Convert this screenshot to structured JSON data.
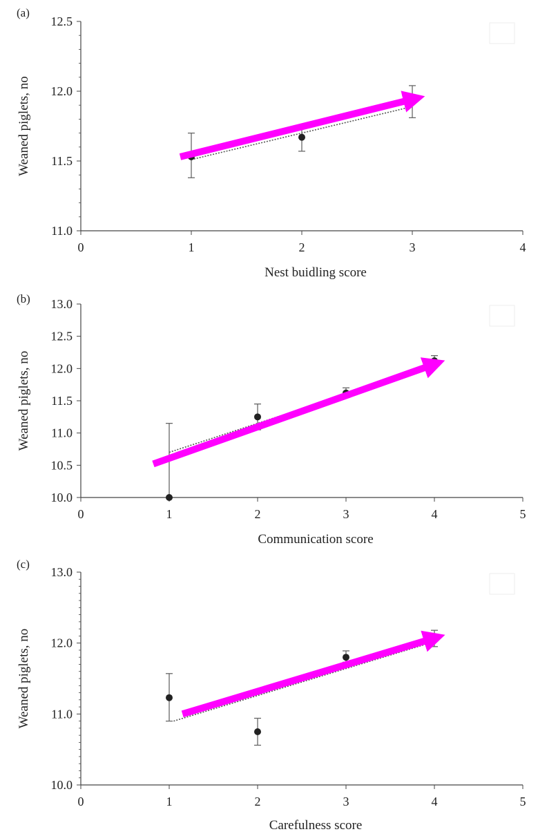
{
  "chart_data": [
    {
      "type": "scatter",
      "panel_label": "(a)",
      "xlabel": "Nest buidling score",
      "ylabel": "Weaned piglets, no",
      "xlim": [
        0,
        4
      ],
      "ylim": [
        11.0,
        12.5
      ],
      "x_ticks": [
        "0",
        "1",
        "2",
        "3",
        "4"
      ],
      "y_ticks": [
        "11.0",
        "11.5",
        "12.0",
        "12.5"
      ],
      "points": [
        {
          "x": 1,
          "y": 11.53,
          "err_low": 11.38,
          "err_high": 11.7
        },
        {
          "x": 2,
          "y": 11.67,
          "err_low": 11.57,
          "err_high": 11.76
        },
        {
          "x": 3,
          "y": 11.92,
          "err_low": 11.81,
          "err_high": 12.04
        }
      ],
      "trendline": {
        "x": [
          1,
          3
        ],
        "y": [
          11.51,
          11.89
        ]
      },
      "arrow": {
        "from": [
          0.9,
          11.53
        ],
        "to": [
          3.08,
          11.96
        ],
        "color": "#ff00ff"
      }
    },
    {
      "type": "scatter",
      "panel_label": "(b)",
      "xlabel": "Communication score",
      "ylabel": "Weaned piglets, no",
      "xlim": [
        0,
        5
      ],
      "ylim": [
        10.0,
        13.0
      ],
      "x_ticks": [
        "0",
        "1",
        "2",
        "3",
        "4",
        "5"
      ],
      "y_ticks": [
        "10.0",
        "10.5",
        "11.0",
        "11.5",
        "12.0",
        "12.5",
        "13.0"
      ],
      "points": [
        {
          "x": 1,
          "y": 10.0,
          "err_low": 10.0,
          "err_high": 11.15
        },
        {
          "x": 2,
          "y": 11.25,
          "err_low": 11.05,
          "err_high": 11.45
        },
        {
          "x": 3,
          "y": 11.62,
          "err_low": 11.55,
          "err_high": 11.7
        },
        {
          "x": 4,
          "y": 12.12,
          "err_low": 12.05,
          "err_high": 12.2
        }
      ],
      "trendline": {
        "x": [
          1,
          4
        ],
        "y": [
          10.7,
          12.05
        ]
      },
      "arrow": {
        "from": [
          0.82,
          10.52
        ],
        "to": [
          4.08,
          12.1
        ],
        "color": "#ff00ff"
      }
    },
    {
      "type": "scatter",
      "panel_label": "(c)",
      "xlabel": "Carefulness score",
      "ylabel": "Weaned piglets, no",
      "xlim": [
        0,
        5
      ],
      "ylim": [
        10.0,
        13.0
      ],
      "x_ticks": [
        "0",
        "1",
        "2",
        "3",
        "4",
        "5"
      ],
      "y_ticks": [
        "10.0",
        "11.0",
        "12.0",
        "13.0"
      ],
      "points": [
        {
          "x": 1,
          "y": 11.23,
          "err_low": 10.9,
          "err_high": 11.57
        },
        {
          "x": 2,
          "y": 10.75,
          "err_low": 10.56,
          "err_high": 10.94
        },
        {
          "x": 3,
          "y": 11.8,
          "err_low": 11.73,
          "err_high": 11.89
        },
        {
          "x": 4,
          "y": 12.06,
          "err_low": 11.95,
          "err_high": 12.18
        }
      ],
      "trendline": {
        "x": [
          1.05,
          4
        ],
        "y": [
          10.9,
          12.02
        ]
      },
      "arrow": {
        "from": [
          1.15,
          11.0
        ],
        "to": [
          4.08,
          12.1
        ],
        "color": "#ff00ff"
      }
    }
  ]
}
